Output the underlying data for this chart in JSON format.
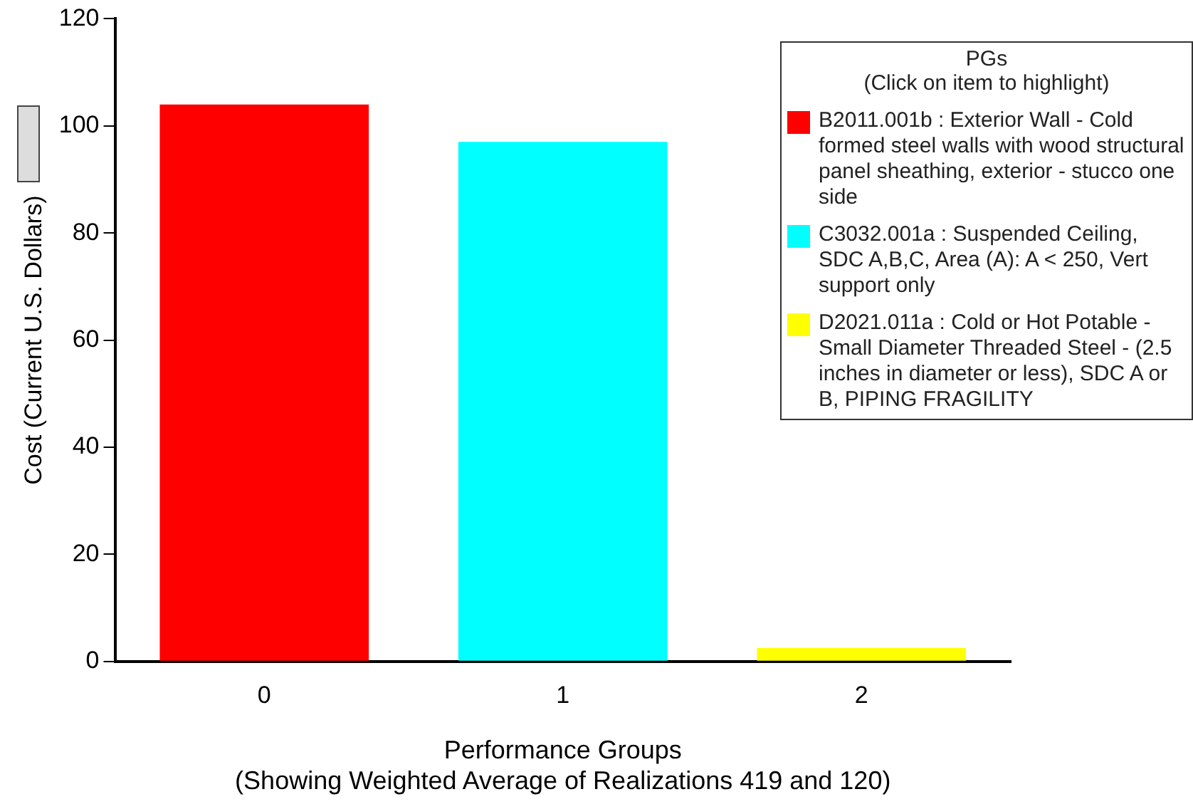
{
  "chart_data": {
    "type": "bar",
    "xlabel": "Performance Groups\n(Showing Weighted Average of Realizations 419 and 120)",
    "ylabel": "Cost (Current U.S. Dollars)",
    "legend_title": "PGs\n(Click on item to highlight)",
    "categories": [
      "0",
      "1",
      "2"
    ],
    "series": [
      {
        "name": "B2011.001b : Exterior Wall - Cold formed steel walls with wood structural panel sheathing, exterior - stucco one side",
        "color": "#ff0000",
        "values": [
          104,
          null,
          null
        ]
      },
      {
        "name": "C3032.001a : Suspended Ceiling, SDC A,B,C, Area (A): A < 250, Vert support only",
        "color": "#00ffff",
        "values": [
          null,
          97,
          null
        ]
      },
      {
        "name": "D2021.011a : Cold or Hot Potable  - Small Diameter Threaded Steel - (2.5 inches in diameter or less), SDC A or B, PIPING FRAGILITY",
        "color": "#ffff00",
        "values": [
          null,
          null,
          2.5
        ]
      }
    ],
    "ylim": [
      0,
      120
    ],
    "yticks": [
      0,
      20,
      40,
      60,
      80,
      100,
      120
    ],
    "legend": "top right"
  }
}
